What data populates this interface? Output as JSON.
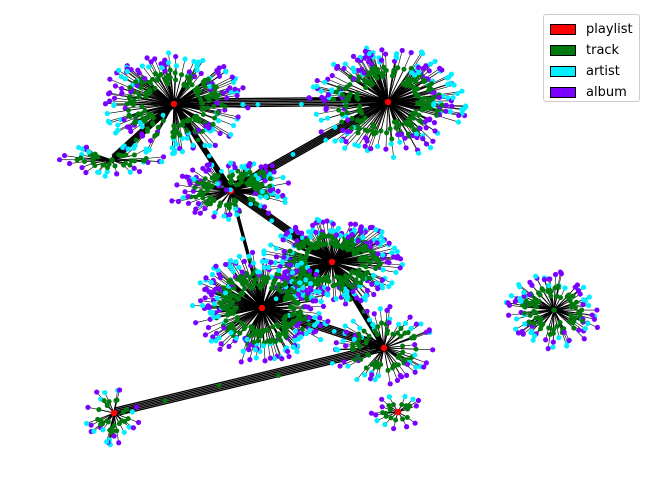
{
  "legend": {
    "items": [
      {
        "label": "playlist",
        "color": "#ff0000"
      },
      {
        "label": "track",
        "color": "#007a0f"
      },
      {
        "label": "artist",
        "color": "#00eeff"
      },
      {
        "label": "album",
        "color": "#7a00ff"
      }
    ]
  },
  "chart_data": {
    "type": "network",
    "node_types": [
      "playlist",
      "track",
      "artist",
      "album"
    ],
    "node_colors": {
      "playlist": "#ff0000",
      "track": "#007a0f",
      "artist": "#00eeff",
      "album": "#7a00ff"
    },
    "edge_color": "#000000",
    "axes_visible": false,
    "legend_position": "top-right",
    "playlist_count": 8,
    "clusters": [
      {
        "id": "c1",
        "leaves": 150
      },
      {
        "id": "c2",
        "leaves": 180
      },
      {
        "id": "c3",
        "leaves": 80
      },
      {
        "id": "c4",
        "leaves": 200
      },
      {
        "id": "c5",
        "leaves": 200
      },
      {
        "id": "c6",
        "leaves": 60
      },
      {
        "id": "c7",
        "leaves": 14
      },
      {
        "id": "c8",
        "leaves": 25
      },
      {
        "id": "c9",
        "leaves": 30
      },
      {
        "id": "c10",
        "leaves": 18
      },
      {
        "id": "c11",
        "leaves": 80
      }
    ],
    "inter_cluster_links": [
      [
        "c1",
        "c2"
      ],
      [
        "c1",
        "c3"
      ],
      [
        "c2",
        "c3"
      ],
      [
        "c3",
        "c4"
      ],
      [
        "c3",
        "c5"
      ],
      [
        "c4",
        "c5"
      ],
      [
        "c5",
        "c6"
      ],
      [
        "c4",
        "c6"
      ],
      [
        "c6",
        "c8"
      ],
      [
        "c1",
        "c9"
      ]
    ]
  }
}
